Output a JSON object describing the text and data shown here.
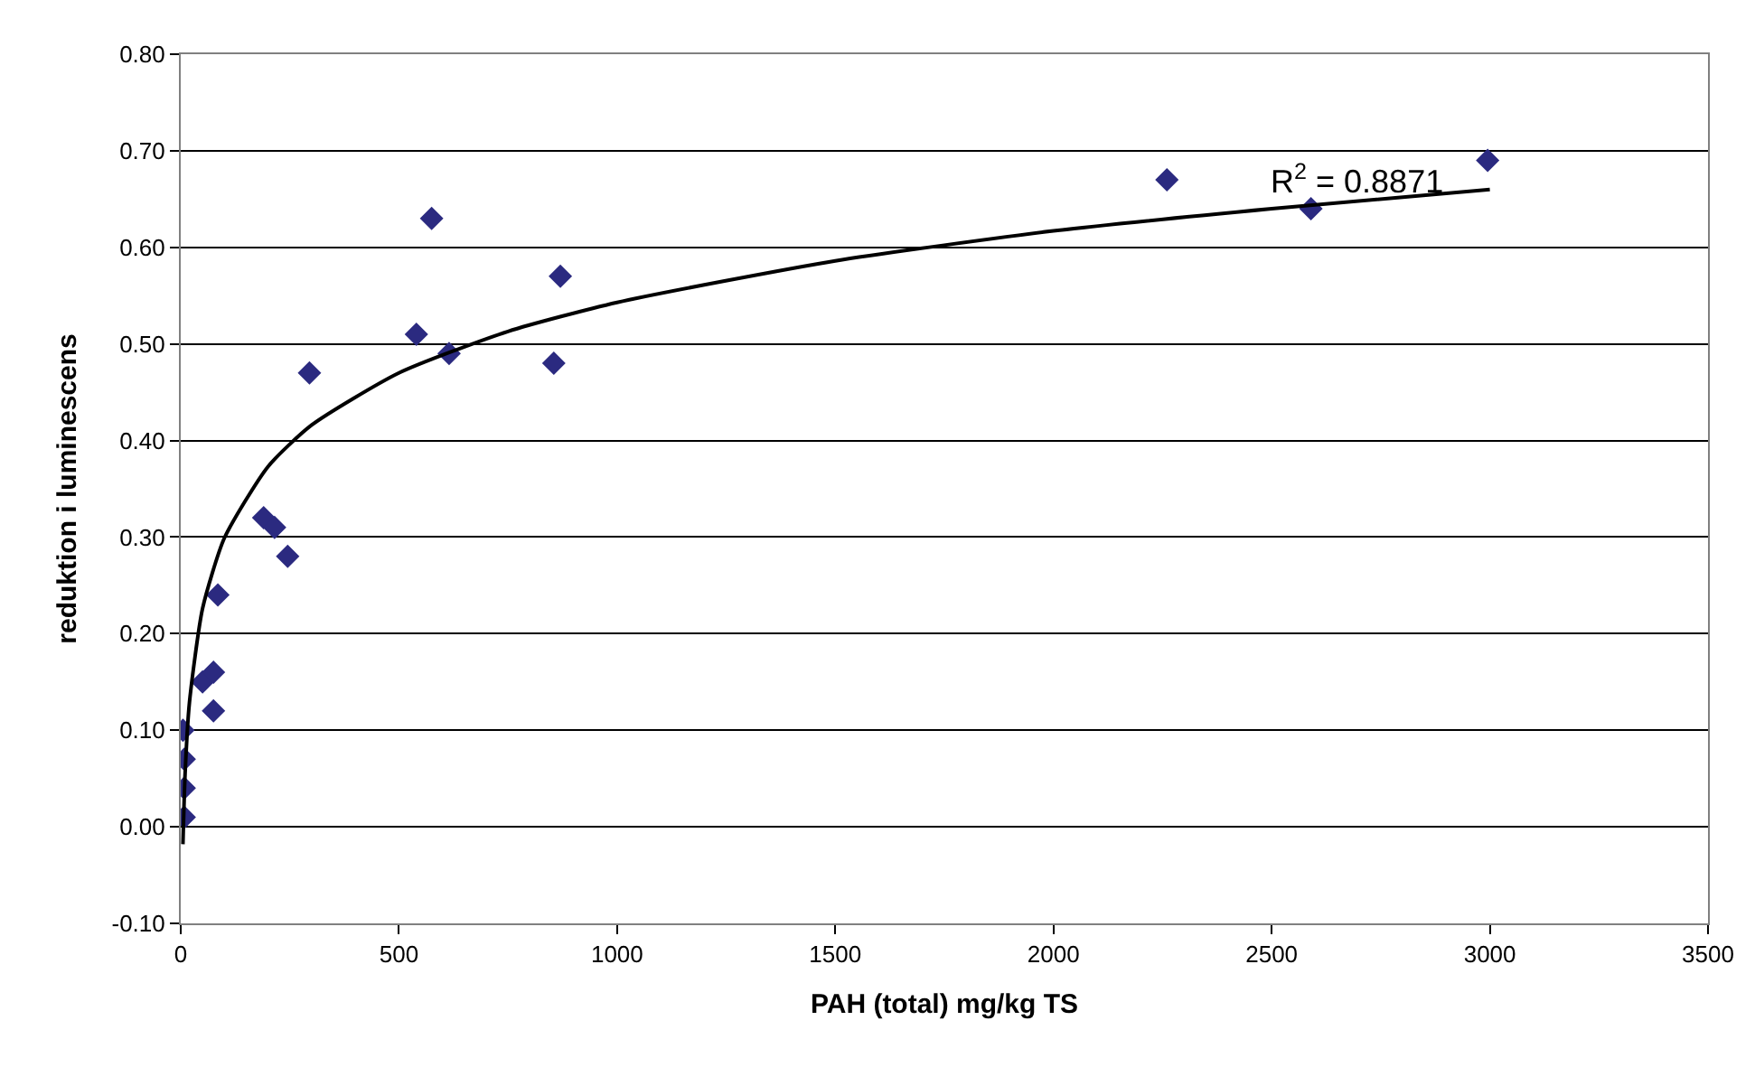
{
  "chart_data": {
    "type": "scatter",
    "xlabel": "PAH (total) mg/kg TS",
    "ylabel": "reduktion i luminescens",
    "xlim": [
      0,
      3500
    ],
    "xticks": [
      0,
      500,
      1000,
      1500,
      2000,
      2500,
      3000,
      3500
    ],
    "ylim": [
      -0.1,
      0.8
    ],
    "yticks": [
      {
        "value": -0.1,
        "label": "-0.10"
      },
      {
        "value": 0,
        "label": "0.00"
      },
      {
        "value": 0.1,
        "label": "0.10"
      },
      {
        "value": 0.2,
        "label": "0.20"
      },
      {
        "value": 0.3,
        "label": "0.30"
      },
      {
        "value": 0.4,
        "label": "0.40"
      },
      {
        "value": 0.5,
        "label": "0.50"
      },
      {
        "value": 0.6,
        "label": "0.60"
      },
      {
        "value": 0.7,
        "label": "0.70"
      },
      {
        "value": 0.8,
        "label": "0.80"
      }
    ],
    "grid": "y",
    "series": [
      {
        "marker": "diamond",
        "color": "#2b2a80",
        "x": [
          5,
          8,
          8,
          8,
          50,
          75,
          75,
          85,
          190,
          215,
          245,
          295,
          540,
          575,
          615,
          855,
          870,
          2260,
          2590,
          2995
        ],
        "values": [
          0.1,
          0.07,
          0.04,
          0.01,
          0.15,
          0.16,
          0.12,
          0.24,
          0.32,
          0.31,
          0.28,
          0.47,
          0.51,
          0.63,
          0.49,
          0.48,
          0.57,
          0.67,
          0.64,
          0.69
        ]
      },
      {
        "type": "line",
        "marker": "none",
        "color": "#000000",
        "x": [
          5,
          10,
          20,
          50,
          100,
          200,
          300,
          500,
          750,
          1000,
          1500,
          2000,
          2500,
          3000
        ],
        "values": [
          -0.018,
          0.055,
          0.129,
          0.226,
          0.299,
          0.373,
          0.416,
          0.47,
          0.513,
          0.543,
          0.586,
          0.617,
          0.64,
          0.66
        ]
      }
    ],
    "annotations": [
      "R$^{2}$ = 0.8871"
    ]
  }
}
